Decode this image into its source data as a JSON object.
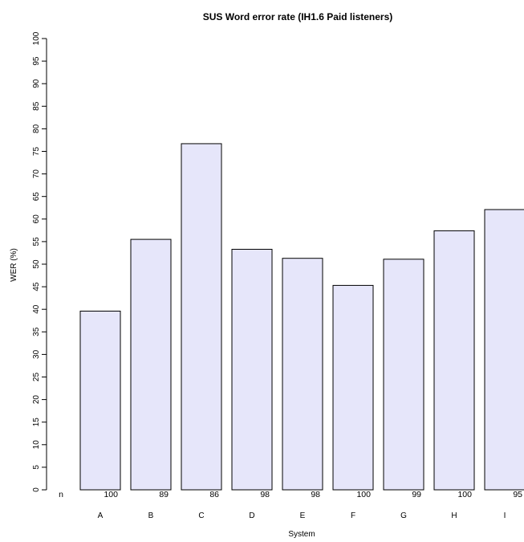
{
  "chart_data": {
    "type": "bar",
    "title": "SUS Word error rate (IH1.6 Paid listeners)",
    "xlabel": "System",
    "ylabel": "WER (%)",
    "ylim": [
      0,
      100
    ],
    "yticks": [
      0,
      5,
      10,
      15,
      20,
      25,
      30,
      35,
      40,
      45,
      50,
      55,
      60,
      65,
      70,
      75,
      80,
      85,
      90,
      95,
      100
    ],
    "categories": [
      "A",
      "B",
      "C",
      "D",
      "E",
      "F",
      "G",
      "H",
      "I"
    ],
    "values": [
      39.6,
      55.5,
      76.7,
      53.3,
      51.3,
      45.3,
      51.1,
      57.4,
      62.1
    ],
    "n_label": "n",
    "n_values": [
      "100",
      "89",
      "86",
      "98",
      "98",
      "100",
      "99",
      "100",
      "95"
    ],
    "bar_color": "#e6e6fa"
  }
}
